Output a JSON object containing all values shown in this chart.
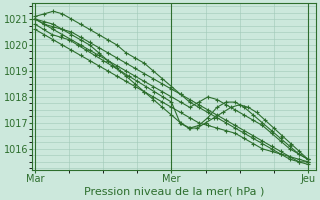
{
  "background_color": "#cce8dc",
  "plot_bg_color": "#cce8dc",
  "line_color": "#2d6e2d",
  "marker": "+",
  "xlabel": "Pression niveau de la mer( hPa )",
  "xlabel_fontsize": 8,
  "yticks": [
    1016,
    1017,
    1018,
    1019,
    1020,
    1021
  ],
  "xtick_labels": [
    "Mar",
    "Mer",
    "Jeu"
  ],
  "xtick_positions": [
    0,
    24,
    48
  ],
  "ylim": [
    1015.2,
    1021.6
  ],
  "xlim": [
    -0.5,
    49.5
  ],
  "grid_color": "#a0c8b8",
  "series": [
    [
      1021.0,
      1020.9,
      1020.8,
      1020.6,
      1020.4,
      1020.2,
      1020.0,
      1019.7,
      1019.4,
      1019.1,
      1018.8,
      1018.5,
      1018.2,
      1017.9,
      1017.6,
      1017.3,
      1017.0,
      1016.8,
      1016.9,
      1017.2,
      1017.6,
      1017.8,
      1017.8,
      1017.6,
      1017.3,
      1017.0,
      1016.7,
      1016.4,
      1016.1,
      1015.8,
      1015.6
    ],
    [
      1021.0,
      1020.8,
      1020.6,
      1020.4,
      1020.2,
      1020.0,
      1019.8,
      1019.6,
      1019.4,
      1019.2,
      1019.0,
      1018.8,
      1018.6,
      1018.4,
      1018.2,
      1018.0,
      1017.8,
      1017.6,
      1017.8,
      1018.0,
      1017.9,
      1017.7,
      1017.5,
      1017.3,
      1017.1,
      1016.9,
      1016.6,
      1016.3,
      1016.0,
      1015.8,
      1015.6
    ],
    [
      1021.1,
      1021.2,
      1021.3,
      1021.2,
      1021.0,
      1020.8,
      1020.6,
      1020.4,
      1020.2,
      1020.0,
      1019.7,
      1019.5,
      1019.3,
      1019.0,
      1018.7,
      1018.4,
      1018.1,
      1017.8,
      1017.6,
      1017.4,
      1017.2,
      1017.0,
      1016.8,
      1016.6,
      1016.4,
      1016.2,
      1016.0,
      1015.8,
      1015.6,
      1015.5,
      1015.4
    ],
    [
      1021.0,
      1020.8,
      1020.7,
      1020.6,
      1020.5,
      1020.3,
      1020.1,
      1019.9,
      1019.7,
      1019.5,
      1019.3,
      1019.1,
      1018.9,
      1018.7,
      1018.5,
      1018.3,
      1018.1,
      1017.9,
      1017.7,
      1017.5,
      1017.3,
      1017.1,
      1016.9,
      1016.7,
      1016.5,
      1016.3,
      1016.1,
      1015.9,
      1015.7,
      1015.5,
      1015.5
    ],
    [
      1020.8,
      1020.6,
      1020.4,
      1020.3,
      1020.2,
      1020.0,
      1019.8,
      1019.6,
      1019.4,
      1019.2,
      1019.0,
      1018.8,
      1018.6,
      1018.4,
      1018.2,
      1018.0,
      1017.8,
      1017.0,
      1016.8,
      1016.8,
      1017.0,
      1017.2,
      1017.4,
      1017.6,
      1017.7,
      1017.6,
      1017.4,
      1017.1,
      1016.8,
      1016.5,
      1016.2,
      1015.9,
      1015.6
    ],
    [
      1020.6,
      1020.4,
      1020.2,
      1020.0,
      1019.8,
      1019.6,
      1019.4,
      1019.2,
      1019.0,
      1018.8,
      1018.6,
      1018.4,
      1018.2,
      1018.0,
      1017.8,
      1017.6,
      1017.4,
      1017.2,
      1017.0,
      1016.9,
      1016.8,
      1016.7,
      1016.6,
      1016.4,
      1016.2,
      1016.0,
      1015.9,
      1015.8,
      1015.7,
      1015.6,
      1015.5
    ]
  ],
  "vline_color": "#2d6e2d",
  "tick_color": "#2d6e2d",
  "tick_fontsize": 7,
  "ytick_fontsize": 7,
  "line_width": 0.8,
  "marker_size": 3.0,
  "marker_ew": 0.8
}
